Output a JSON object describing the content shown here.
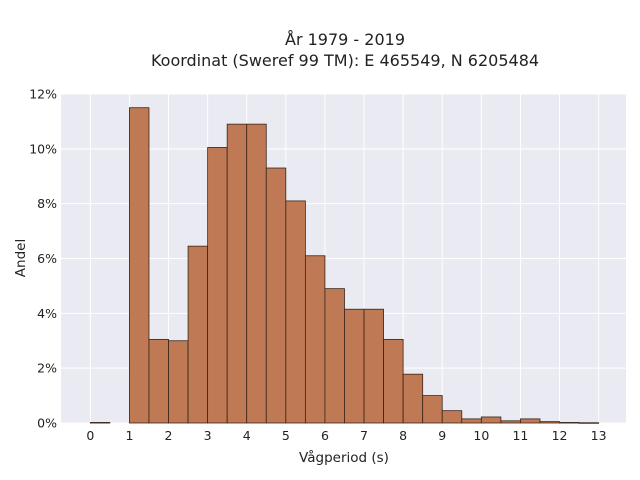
{
  "chart_data": {
    "type": "bar",
    "title_line1": "År 1979 - 2019",
    "title_line2": "Koordinat (Sweref 99 TM): E 465549, N 6205484",
    "xlabel": "Vågperiod (s)",
    "ylabel": "Andel",
    "xlim": [
      -0.75,
      13.7
    ],
    "ylim": [
      0,
      12
    ],
    "bin_width": 0.5,
    "bins_start": [
      0,
      1,
      1.5,
      2,
      2.5,
      3,
      3.5,
      4,
      4.5,
      5,
      5.5,
      6,
      6.5,
      7,
      7.5,
      8,
      8.5,
      9,
      9.5,
      10,
      10.5,
      11,
      11.5,
      12,
      12.5
    ],
    "values": [
      0.02,
      11.5,
      3.05,
      3.0,
      6.45,
      10.05,
      10.9,
      10.9,
      9.3,
      8.1,
      6.1,
      4.9,
      4.15,
      4.15,
      3.05,
      1.78,
      1.0,
      0.45,
      0.15,
      0.22,
      0.08,
      0.15,
      0.05,
      0.02,
      0.01
    ],
    "x_ticks": [
      "0",
      "1",
      "2",
      "3",
      "4",
      "5",
      "6",
      "7",
      "8",
      "9",
      "10",
      "11",
      "12",
      "13"
    ],
    "y_ticks": [
      "0%",
      "2%",
      "4%",
      "6%",
      "8%",
      "10%",
      "12%"
    ],
    "grid": true,
    "legend": "none",
    "colors": {
      "bar": "#bf7a55",
      "bar_edge": "#3a2418",
      "plot_bg": "#e9eaf2",
      "grid": "#ffffff"
    }
  }
}
